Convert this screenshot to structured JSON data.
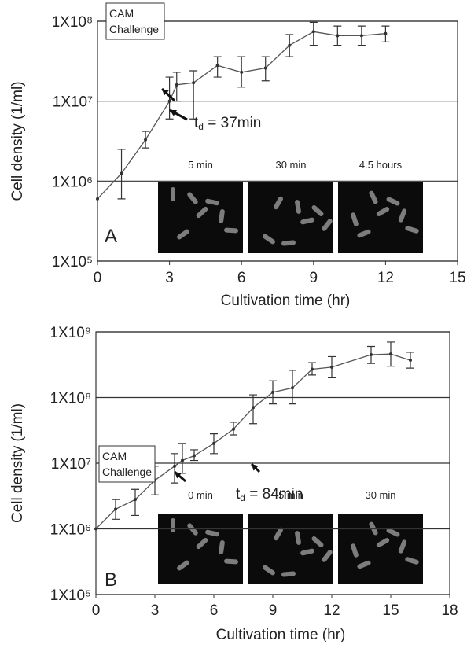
{
  "chart_data": [
    {
      "type": "line",
      "panel_label": "A",
      "y_label": "Cell density (1/ml)",
      "x_label": "Cultivation time (hr)",
      "log_y": true,
      "grid": true,
      "color": "#555555",
      "xlim": [
        0,
        15
      ],
      "xticks": [
        0,
        3,
        6,
        9,
        12,
        15
      ],
      "ylim": [
        100000,
        100000000
      ],
      "yticks": [
        {
          "value": 100000,
          "label": "1X10⁵"
        },
        {
          "value": 1000000,
          "label": "1X10⁶"
        },
        {
          "value": 10000000,
          "label": "1X10⁷"
        },
        {
          "value": 100000000,
          "label": "1X10⁸"
        }
      ],
      "x": [
        0,
        1,
        2,
        3,
        3.3,
        4,
        5,
        6,
        7,
        8,
        9,
        10,
        11,
        12
      ],
      "values": [
        600000,
        1250000,
        3300000,
        10000000,
        16000000,
        17000000,
        28000000,
        23000000,
        26000000,
        50000000,
        74000000,
        66000000,
        66000000,
        70000000
      ],
      "lower": [
        null,
        600000,
        2600000,
        6000000,
        10000000,
        6000000,
        20000000,
        15000000,
        18000000,
        36000000,
        50000000,
        50000000,
        50000000,
        55000000
      ],
      "upper": [
        null,
        2500000,
        4200000,
        20000000,
        23000000,
        24000000,
        36000000,
        36000000,
        36000000,
        68000000,
        97000000,
        87000000,
        87000000,
        87000000
      ],
      "challenge_label": [
        "CAM",
        "Challenge"
      ],
      "doubling_time": {
        "symbol": "t",
        "subscript": "d",
        "text": " = 37min"
      },
      "image_labels": [
        "5 min",
        "30 min",
        "4.5 hours"
      ]
    },
    {
      "type": "line",
      "panel_label": "B",
      "y_label": "Cell density (1/ml)",
      "x_label": "Cultivation time (hr)",
      "log_y": true,
      "grid": true,
      "color": "#555555",
      "xlim": [
        0,
        18
      ],
      "xticks": [
        0,
        3,
        6,
        9,
        12,
        15,
        18
      ],
      "ylim": [
        100000,
        1000000000
      ],
      "yticks": [
        {
          "value": 100000,
          "label": "1X10⁵"
        },
        {
          "value": 1000000,
          "label": "1X10⁶"
        },
        {
          "value": 10000000,
          "label": "1X10⁷"
        },
        {
          "value": 100000000,
          "label": "1X10⁸"
        },
        {
          "value": 1000000000,
          "label": "1X10⁹"
        }
      ],
      "x": [
        0,
        1,
        2,
        3,
        4,
        4.4,
        5,
        6,
        7,
        8,
        9,
        10,
        11,
        12,
        14,
        15,
        16
      ],
      "values": [
        1000000,
        2000000,
        2800000,
        5500000,
        9000000,
        11000000,
        13000000,
        20000000,
        33000000,
        70000000,
        120000000,
        140000000,
        270000000,
        290000000,
        450000000,
        460000000,
        370000000
      ],
      "lower": [
        null,
        1400000,
        1600000,
        3300000,
        5000000,
        7000000,
        11000000,
        14000000,
        27000000,
        40000000,
        80000000,
        80000000,
        220000000,
        200000000,
        330000000,
        300000000,
        280000000
      ],
      "upper": [
        null,
        2800000,
        4000000,
        9000000,
        14000000,
        20000000,
        16000000,
        28000000,
        42000000,
        110000000,
        180000000,
        260000000,
        340000000,
        420000000,
        600000000,
        700000000,
        490000000
      ],
      "challenge_label": [
        "CAM",
        "Challenge"
      ],
      "doubling_time": {
        "symbol": "t",
        "subscript": "d",
        "text": " = 84min"
      },
      "image_labels": [
        "0 min",
        "5 min",
        "30 min"
      ]
    }
  ]
}
